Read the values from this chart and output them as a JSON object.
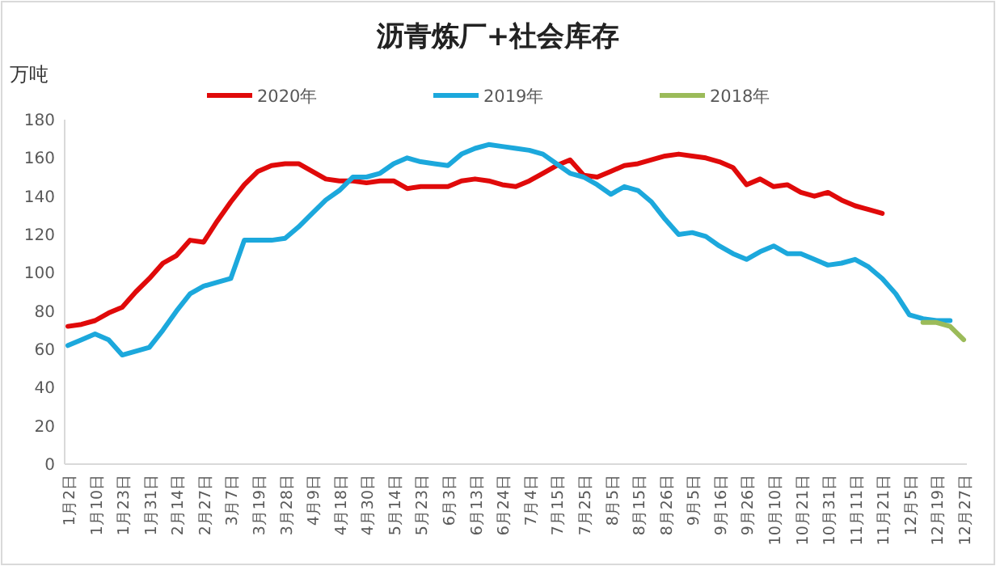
{
  "chart_data": {
    "type": "line",
    "title": "沥青炼厂+社会库存",
    "ylabel": "万吨",
    "categories": [
      "1月2日",
      null,
      "1月10日",
      null,
      "1月23日",
      null,
      "1月31日",
      null,
      "2月14日",
      null,
      "2月27日",
      null,
      "3月7日",
      null,
      "3月19日",
      null,
      "3月28日",
      null,
      "4月9日",
      null,
      "4月18日",
      null,
      "4月30日",
      null,
      "5月14日",
      null,
      "5月23日",
      null,
      "6月3日",
      null,
      "6月13日",
      null,
      "6月24日",
      null,
      "7月4日",
      null,
      "7月15日",
      null,
      "7月25日",
      null,
      "8月5日",
      null,
      "8月15日",
      null,
      "8月26日",
      null,
      "9月5日",
      null,
      "9月16日",
      null,
      "9月26日",
      null,
      "10月10日",
      null,
      "10月21日",
      null,
      "10月31日",
      null,
      "11月11日",
      null,
      "11月21日",
      null,
      "12月5日",
      null,
      "12月19日",
      null,
      "12月27日"
    ],
    "series": [
      {
        "name": "2020年",
        "color": "#e00a0a",
        "values": [
          72,
          73,
          75,
          79,
          82,
          90,
          97,
          105,
          109,
          117,
          116,
          127,
          137,
          146,
          153,
          156,
          157,
          157,
          153,
          149,
          148,
          148,
          147,
          148,
          148,
          144,
          145,
          145,
          145,
          148,
          149,
          148,
          146,
          145,
          148,
          152,
          156,
          159,
          151,
          150,
          153,
          156,
          157,
          159,
          161,
          162,
          161,
          160,
          158,
          155,
          146,
          149,
          145,
          146,
          142,
          140,
          142,
          138,
          135,
          133,
          131,
          null,
          null,
          null,
          null,
          null,
          null
        ]
      },
      {
        "name": "2019年",
        "color": "#1ca8dc",
        "values": [
          62,
          65,
          68,
          65,
          57,
          59,
          61,
          70,
          80,
          89,
          93,
          95,
          97,
          117,
          117,
          117,
          118,
          124,
          131,
          138,
          143,
          150,
          150,
          152,
          157,
          160,
          158,
          157,
          156,
          162,
          165,
          167,
          166,
          165,
          164,
          162,
          157,
          152,
          150,
          146,
          141,
          145,
          143,
          137,
          128,
          120,
          121,
          119,
          114,
          110,
          107,
          111,
          114,
          110,
          110,
          107,
          104,
          105,
          107,
          103,
          97,
          89,
          78,
          76,
          75,
          75,
          null
        ]
      },
      {
        "name": "2018年",
        "color": "#9bbb59",
        "values": [
          null,
          null,
          null,
          null,
          null,
          null,
          null,
          null,
          null,
          null,
          null,
          null,
          null,
          null,
          null,
          null,
          null,
          null,
          null,
          null,
          null,
          null,
          null,
          null,
          null,
          null,
          null,
          null,
          null,
          null,
          null,
          null,
          null,
          null,
          null,
          null,
          null,
          null,
          null,
          null,
          null,
          null,
          null,
          null,
          null,
          null,
          null,
          null,
          null,
          null,
          null,
          null,
          null,
          null,
          null,
          null,
          null,
          null,
          null,
          null,
          null,
          null,
          null,
          74,
          74,
          72,
          65
        ]
      }
    ],
    "ylim": [
      0,
      180
    ],
    "yticks": [
      0,
      20,
      40,
      60,
      80,
      100,
      120,
      140,
      160,
      180
    ],
    "grid": false,
    "legend": "top",
    "marker": "none",
    "line_style": "solid"
  }
}
